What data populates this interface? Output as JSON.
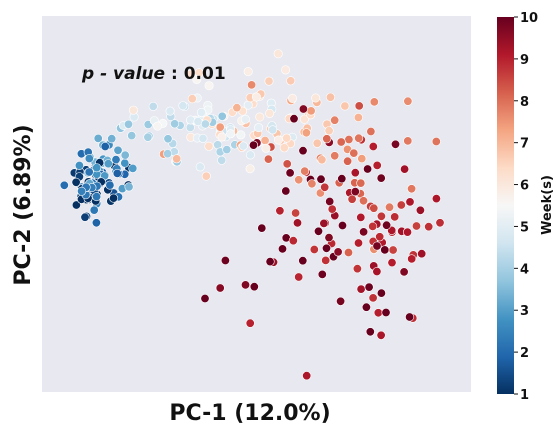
{
  "chart_data": {
    "type": "scatter",
    "title": "",
    "xlabel": "PC-1 (12.0%)",
    "ylabel": "PC-2 (6.89%)",
    "xlim": [
      -1.0,
      1.0
    ],
    "ylim": [
      -1.0,
      1.0
    ],
    "grid": false,
    "background_color": "#e8e8f0",
    "annotation": {
      "label_italic": "p - value",
      "separator": " : ",
      "value": "0.01"
    },
    "colorbar": {
      "label": "Week(s)",
      "range": [
        1,
        10
      ],
      "ticks": [
        "1",
        "2",
        "3",
        "4",
        "5",
        "6",
        "7",
        "8",
        "9",
        "10"
      ],
      "colormap": "RdBu_r",
      "colormap_stops": [
        "#053061",
        "#2166ac",
        "#4393c3",
        "#92c5de",
        "#d1e5f0",
        "#f7f7f7",
        "#fddbc7",
        "#f4a582",
        "#d6604d",
        "#b2182b",
        "#67001f"
      ],
      "placement": "right"
    },
    "clusters": [
      {
        "week": 1,
        "cx": -0.76,
        "cy": 0.09,
        "sx": 0.07,
        "sy": 0.07,
        "n": 45
      },
      {
        "week": 2,
        "cx": -0.72,
        "cy": 0.12,
        "sx": 0.07,
        "sy": 0.08,
        "n": 30
      },
      {
        "week": 3,
        "cx": -0.72,
        "cy": 0.16,
        "sx": 0.07,
        "sy": 0.08,
        "n": 25
      },
      {
        "week": 4,
        "cx": -0.37,
        "cy": 0.38,
        "sx": 0.14,
        "sy": 0.08,
        "n": 28
      },
      {
        "week": 5,
        "cx": -0.18,
        "cy": 0.42,
        "sx": 0.18,
        "sy": 0.1,
        "n": 40
      },
      {
        "week": 6,
        "cx": -0.08,
        "cy": 0.48,
        "sx": 0.22,
        "sy": 0.14,
        "n": 40
      },
      {
        "week": 7,
        "cx": 0.12,
        "cy": 0.42,
        "sx": 0.22,
        "sy": 0.14,
        "n": 35
      },
      {
        "week": 8,
        "cx": 0.4,
        "cy": 0.22,
        "sx": 0.2,
        "sy": 0.2,
        "n": 35
      },
      {
        "week": 9,
        "cx": 0.48,
        "cy": -0.18,
        "sx": 0.18,
        "sy": 0.26,
        "n": 60
      },
      {
        "week": 10,
        "cx": 0.28,
        "cy": -0.12,
        "sx": 0.26,
        "sy": 0.26,
        "n": 45
      }
    ],
    "points_note_values": "synthetic points sampled per cluster: week value -> color"
  }
}
